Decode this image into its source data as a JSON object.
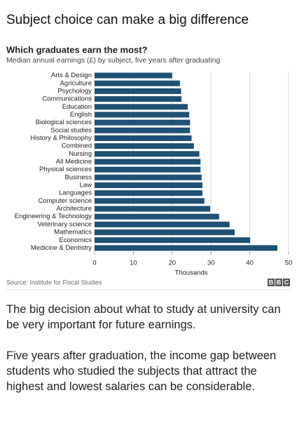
{
  "headline": "Subject choice can make a big difference",
  "chart_data": {
    "type": "barh",
    "title": "Which graduates earn the most?",
    "subtitle": "Median annual earnings (£) by subject, five years after graduating",
    "categories": [
      "Arts & Design",
      "Agriculture",
      "Psychology",
      "Communications",
      "Education",
      "English",
      "Biological sciences",
      "Social studies",
      "History & Philosophy",
      "Combined",
      "Nursing",
      "All Medicine",
      "Physical sciences",
      "Business",
      "Law",
      "Languages",
      "Computer science",
      "Architecture",
      "Engineering & Technology",
      "Veterinary science",
      "Mathematics",
      "Economics",
      "Medicine & Dentistry"
    ],
    "values": [
      20.0,
      22.0,
      22.3,
      22.4,
      24.0,
      24.4,
      24.6,
      24.6,
      25.0,
      25.6,
      27.0,
      27.3,
      27.3,
      27.6,
      27.8,
      27.8,
      28.3,
      29.8,
      32.1,
      34.8,
      36.1,
      40.1,
      47.1
    ],
    "color": "#1d5176",
    "xlim": [
      0,
      50
    ],
    "xticks": [
      0,
      10,
      20,
      30,
      40,
      50
    ],
    "xlabel": "Thousands",
    "grid": true,
    "source": "Source: Institute for Fiscal Studies",
    "logo": [
      "B",
      "B",
      "C"
    ]
  },
  "paragraphs": [
    "The big decision about what to study at university can be very important for future earnings.",
    "Five years after graduation, the income gap between students who studied the subjects that attract the highest and lowest salaries can be considerable."
  ]
}
